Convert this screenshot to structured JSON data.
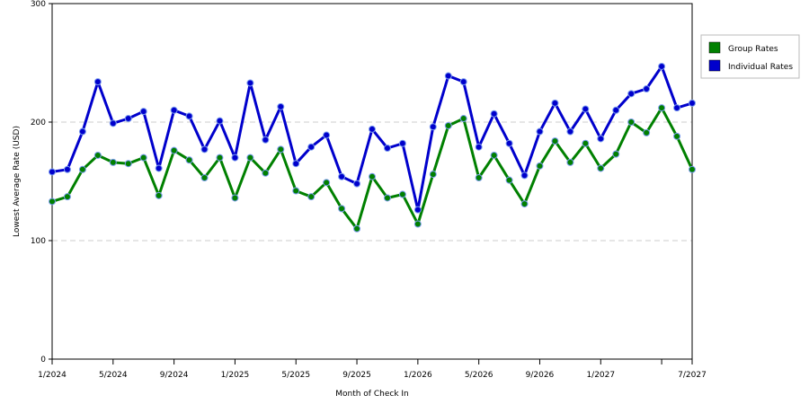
{
  "chart_data": {
    "type": "line",
    "title": "",
    "xlabel": "Month of Check In",
    "ylabel": "Lowest Average Rate (USD)",
    "ylim": [
      0,
      300
    ],
    "yticks": [
      0,
      100,
      200,
      300
    ],
    "grid": "horizontal-dashed",
    "legend_position": "right",
    "x_tick_labels": [
      {
        "index": 0,
        "label": "1/2024"
      },
      {
        "index": 4,
        "label": "5/2024"
      },
      {
        "index": 8,
        "label": "9/2024"
      },
      {
        "index": 12,
        "label": "1/2025"
      },
      {
        "index": 16,
        "label": "5/2025"
      },
      {
        "index": 20,
        "label": "9/2025"
      },
      {
        "index": 24,
        "label": "1/2026"
      },
      {
        "index": 28,
        "label": "5/2026"
      },
      {
        "index": 32,
        "label": "9/2026"
      },
      {
        "index": 36,
        "label": "1/2027"
      },
      {
        "index": 40,
        "label": ""
      },
      {
        "index": 42,
        "label": "7/2027"
      }
    ],
    "x": [
      "1/2024",
      "2/2024",
      "3/2024",
      "4/2024",
      "5/2024",
      "6/2024",
      "7/2024",
      "8/2024",
      "9/2024",
      "10/2024",
      "11/2024",
      "12/2024",
      "1/2025",
      "2/2025",
      "3/2025",
      "4/2025",
      "5/2025",
      "6/2025",
      "7/2025",
      "8/2025",
      "9/2025",
      "10/2025",
      "11/2025",
      "12/2025",
      "1/2026",
      "2/2026",
      "3/2026",
      "4/2026",
      "5/2026",
      "6/2026",
      "7/2026",
      "8/2026",
      "9/2026",
      "10/2026",
      "11/2026",
      "12/2026",
      "1/2027",
      "2/2027",
      "3/2027",
      "4/2027",
      "5/2027",
      "6/2027",
      "7/2027"
    ],
    "series": [
      {
        "name": "Group Rates",
        "color": "#008000",
        "values": [
          133,
          137,
          160,
          172,
          166,
          165,
          170,
          138,
          176,
          168,
          153,
          170,
          136,
          170,
          157,
          177,
          142,
          137,
          149,
          127,
          110,
          154,
          136,
          139,
          114,
          156,
          197,
          203,
          153,
          172,
          151,
          131,
          163,
          184,
          166,
          182,
          161,
          173,
          200,
          191,
          212,
          188,
          160
        ]
      },
      {
        "name": "Individual Rates",
        "color": "#0000cc",
        "values": [
          158,
          160,
          192,
          234,
          199,
          203,
          209,
          161,
          210,
          205,
          177,
          201,
          170,
          233,
          185,
          213,
          165,
          179,
          189,
          154,
          148,
          194,
          178,
          182,
          126,
          196,
          239,
          234,
          179,
          207,
          182,
          155,
          192,
          216,
          192,
          211,
          186,
          210,
          224,
          228,
          247,
          212,
          216
        ]
      }
    ]
  }
}
